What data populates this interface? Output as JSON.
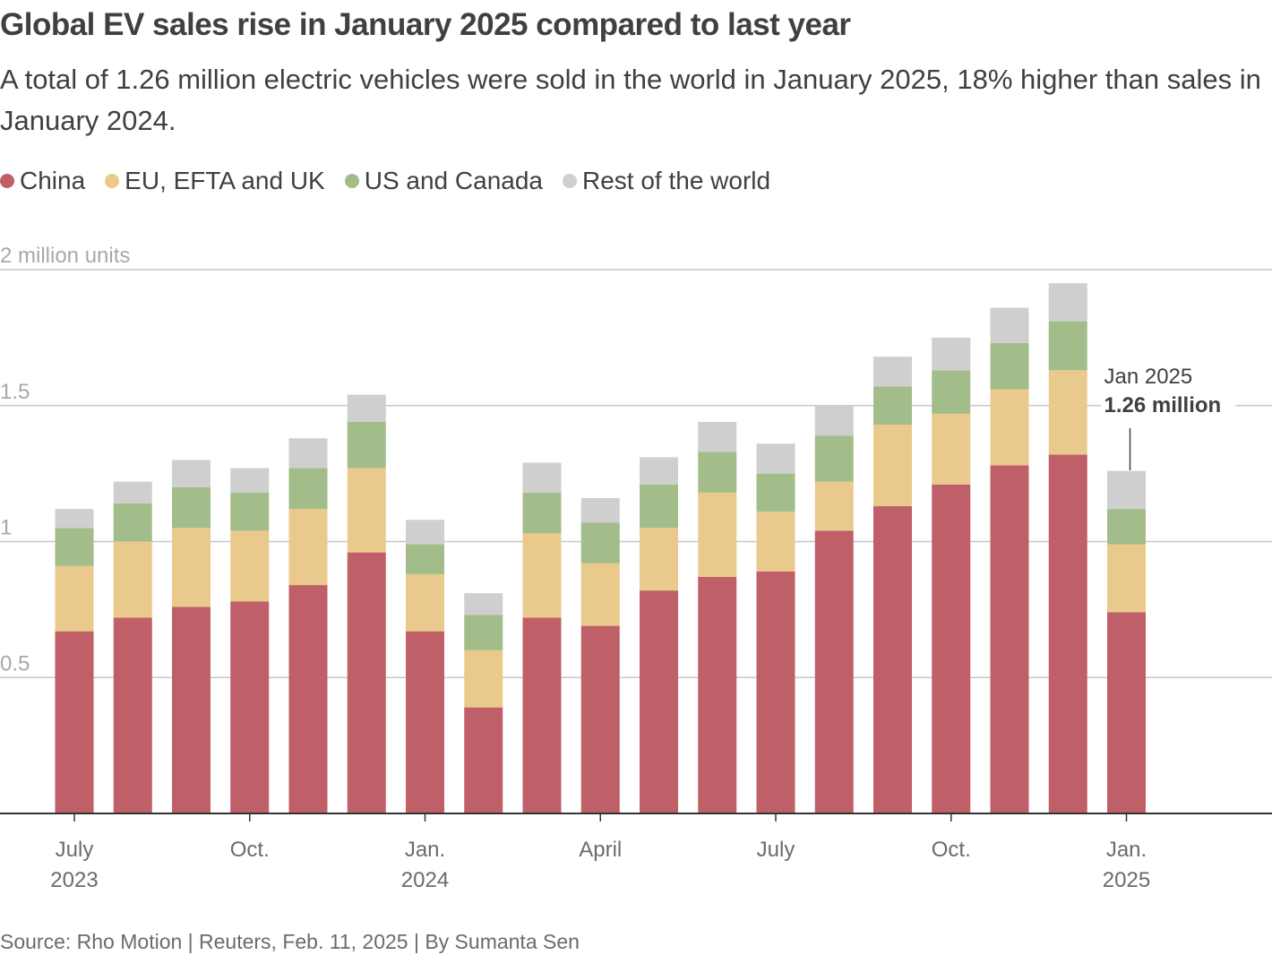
{
  "title": "Global EV sales rise in January 2025 compared to last year",
  "subtitle": "A total of 1.26 million electric vehicles were sold in the world in January 2025, 18% higher than sales in January 2024.",
  "source": "Source: Rho Motion | Reuters, Feb. 11, 2025 | By Sumanta Sen",
  "chart_data": {
    "type": "bar",
    "stacked": true,
    "ylabel": "2 million units",
    "ylim": [
      0,
      2
    ],
    "yticks": [
      {
        "value": 0.5,
        "label": "0.5"
      },
      {
        "value": 1,
        "label": "1"
      },
      {
        "value": 1.5,
        "label": "1.5"
      },
      {
        "value": 2,
        "label": "2 million units"
      }
    ],
    "grid": true,
    "legend_placement": "top-left",
    "categories": [
      "2023-07",
      "2023-08",
      "2023-09",
      "2023-10",
      "2023-11",
      "2023-12",
      "2024-01",
      "2024-02",
      "2024-03",
      "2024-04",
      "2024-05",
      "2024-06",
      "2024-07",
      "2024-08",
      "2024-09",
      "2024-10",
      "2024-11",
      "2024-12",
      "2025-01"
    ],
    "xticks": [
      {
        "category": "2023-07",
        "line1": "July",
        "line2": "2023"
      },
      {
        "category": "2023-10",
        "line1": "Oct.",
        "line2": ""
      },
      {
        "category": "2024-01",
        "line1": "Jan.",
        "line2": "2024"
      },
      {
        "category": "2024-04",
        "line1": "April",
        "line2": ""
      },
      {
        "category": "2024-07",
        "line1": "July",
        "line2": ""
      },
      {
        "category": "2024-10",
        "line1": "Oct.",
        "line2": ""
      },
      {
        "category": "2025-01",
        "line1": "Jan.",
        "line2": "2025"
      }
    ],
    "series": [
      {
        "name": "China",
        "color": "#bf5f68",
        "values": [
          0.67,
          0.72,
          0.76,
          0.78,
          0.84,
          0.96,
          0.67,
          0.39,
          0.72,
          0.69,
          0.82,
          0.87,
          0.89,
          1.04,
          1.13,
          1.21,
          1.28,
          1.32,
          0.74
        ]
      },
      {
        "name": "EU, EFTA and UK",
        "color": "#eaca8c",
        "values": [
          0.24,
          0.28,
          0.29,
          0.26,
          0.28,
          0.31,
          0.21,
          0.21,
          0.31,
          0.23,
          0.23,
          0.31,
          0.22,
          0.18,
          0.3,
          0.26,
          0.28,
          0.31,
          0.25
        ]
      },
      {
        "name": "US and Canada",
        "color": "#a2bd8a",
        "values": [
          0.14,
          0.14,
          0.15,
          0.14,
          0.15,
          0.17,
          0.11,
          0.13,
          0.15,
          0.15,
          0.16,
          0.15,
          0.14,
          0.17,
          0.14,
          0.16,
          0.17,
          0.18,
          0.13
        ]
      },
      {
        "name": "Rest of the world",
        "color": "#cfcfcf",
        "values": [
          0.07,
          0.08,
          0.1,
          0.09,
          0.11,
          0.1,
          0.09,
          0.08,
          0.11,
          0.09,
          0.1,
          0.11,
          0.11,
          0.11,
          0.11,
          0.12,
          0.13,
          0.14,
          0.14
        ]
      }
    ],
    "annotation": {
      "category": "2025-01",
      "line1": "Jan 2025",
      "line2": "1.26 million"
    }
  }
}
